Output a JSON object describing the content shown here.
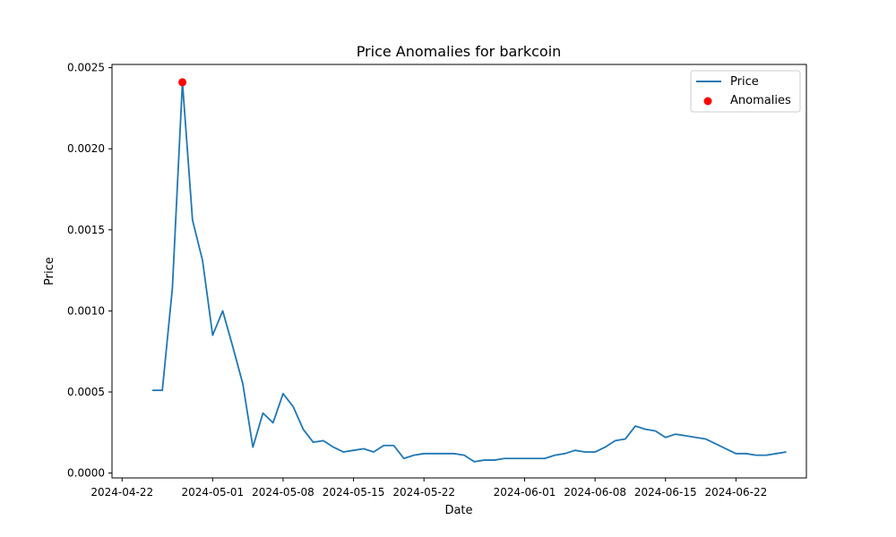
{
  "chart_data": {
    "type": "line",
    "title": "Price Anomalies for barkcoin",
    "xlabel": "Date",
    "ylabel": "Price",
    "grid": false,
    "legend_position": "top-right",
    "xlim": [
      "2024-04-21",
      "2024-06-29"
    ],
    "ylim": [
      -3e-05,
      0.00252
    ],
    "x_ticks": [
      "2024-04-22",
      "2024-05-01",
      "2024-05-08",
      "2024-05-15",
      "2024-05-22",
      "2024-06-01",
      "2024-06-08",
      "2024-06-15",
      "2024-06-22"
    ],
    "y_ticks": [
      "0.0000",
      "0.0005",
      "0.0010",
      "0.0015",
      "0.0020",
      "0.0025"
    ],
    "series": [
      {
        "name": "Price",
        "kind": "line",
        "color": "#1f77b4",
        "x": [
          "2024-04-25",
          "2024-04-26",
          "2024-04-27",
          "2024-04-28",
          "2024-04-29",
          "2024-04-30",
          "2024-05-01",
          "2024-05-02",
          "2024-05-03",
          "2024-05-04",
          "2024-05-05",
          "2024-05-06",
          "2024-05-07",
          "2024-05-08",
          "2024-05-09",
          "2024-05-10",
          "2024-05-11",
          "2024-05-12",
          "2024-05-13",
          "2024-05-14",
          "2024-05-15",
          "2024-05-16",
          "2024-05-17",
          "2024-05-18",
          "2024-05-19",
          "2024-05-20",
          "2024-05-21",
          "2024-05-22",
          "2024-05-23",
          "2024-05-24",
          "2024-05-25",
          "2024-05-26",
          "2024-05-27",
          "2024-05-28",
          "2024-05-29",
          "2024-05-30",
          "2024-05-31",
          "2024-06-01",
          "2024-06-02",
          "2024-06-03",
          "2024-06-04",
          "2024-06-05",
          "2024-06-06",
          "2024-06-07",
          "2024-06-08",
          "2024-06-09",
          "2024-06-10",
          "2024-06-11",
          "2024-06-12",
          "2024-06-13",
          "2024-06-14",
          "2024-06-15",
          "2024-06-16",
          "2024-06-17",
          "2024-06-18",
          "2024-06-19",
          "2024-06-20",
          "2024-06-21",
          "2024-06-22",
          "2024-06-23",
          "2024-06-24",
          "2024-06-25",
          "2024-06-26",
          "2024-06-27"
        ],
        "y": [
          0.00051,
          0.00051,
          0.00114,
          0.00241,
          0.00156,
          0.00131,
          0.00085,
          0.001,
          0.00078,
          0.00055,
          0.00016,
          0.00037,
          0.00031,
          0.00049,
          0.00041,
          0.00027,
          0.00019,
          0.0002,
          0.00016,
          0.00013,
          0.00014,
          0.00015,
          0.00013,
          0.00017,
          0.00017,
          9e-05,
          0.00011,
          0.00012,
          0.00012,
          0.00012,
          0.00012,
          0.00011,
          7e-05,
          8e-05,
          8e-05,
          9e-05,
          9e-05,
          9e-05,
          9e-05,
          9e-05,
          0.00011,
          0.00012,
          0.00014,
          0.00013,
          0.00013,
          0.00016,
          0.0002,
          0.00021,
          0.00029,
          0.00027,
          0.00026,
          0.00022,
          0.00024,
          0.00023,
          0.00022,
          0.00021,
          0.00018,
          0.00015,
          0.00012,
          0.00012,
          0.00011,
          0.00011,
          0.00012,
          0.00013
        ]
      },
      {
        "name": "Anomalies",
        "kind": "scatter",
        "color": "#ff0000",
        "x": [
          "2024-04-28"
        ],
        "y": [
          0.00241
        ]
      }
    ]
  }
}
